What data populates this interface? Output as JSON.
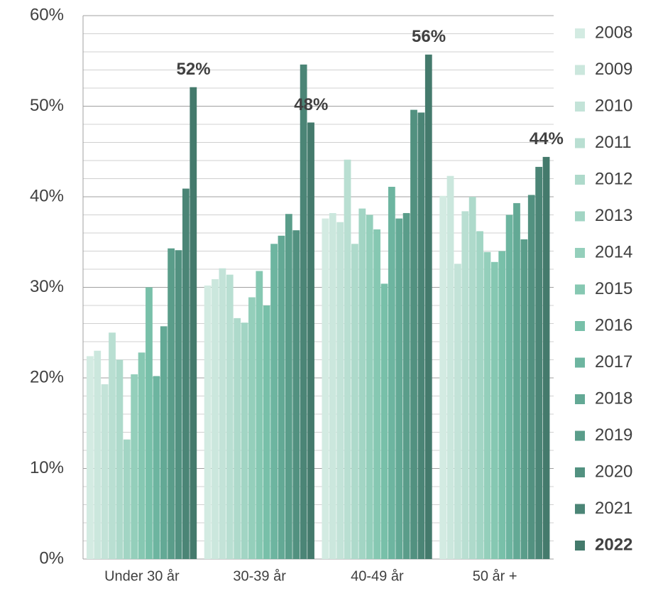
{
  "chart_data": {
    "type": "bar",
    "categories": [
      "Under 30 år",
      "30-39 år",
      "40-49 år",
      "50 år +"
    ],
    "series": [
      {
        "name": "2008",
        "color": "#d3ebe2",
        "values": [
          22.4,
          30.2,
          37.6,
          40.1
        ]
      },
      {
        "name": "2009",
        "color": "#cbe7dd",
        "values": [
          23.0,
          30.9,
          38.2,
          42.3
        ]
      },
      {
        "name": "2010",
        "color": "#c3e3d8",
        "values": [
          19.3,
          32.1,
          37.2,
          32.6
        ]
      },
      {
        "name": "2011",
        "color": "#b9dfd2",
        "values": [
          25.0,
          31.4,
          44.1,
          38.4
        ]
      },
      {
        "name": "2012",
        "color": "#aedacb",
        "values": [
          22.0,
          26.6,
          34.8,
          40.0
        ]
      },
      {
        "name": "2013",
        "color": "#a2d5c4",
        "values": [
          13.2,
          26.1,
          38.7,
          36.2
        ]
      },
      {
        "name": "2014",
        "color": "#94cfbb",
        "values": [
          20.4,
          28.9,
          38.0,
          33.9
        ]
      },
      {
        "name": "2015",
        "color": "#86c8b2",
        "values": [
          22.8,
          31.8,
          36.4,
          32.8
        ]
      },
      {
        "name": "2016",
        "color": "#78c0a9",
        "values": [
          30.0,
          28.0,
          30.4,
          34.0
        ]
      },
      {
        "name": "2017",
        "color": "#6db5a0",
        "values": [
          20.2,
          34.8,
          41.1,
          38.0
        ]
      },
      {
        "name": "2018",
        "color": "#63a995",
        "values": [
          25.7,
          35.7,
          37.6,
          39.3
        ]
      },
      {
        "name": "2019",
        "color": "#5a9d8a",
        "values": [
          34.3,
          38.1,
          38.2,
          35.3
        ]
      },
      {
        "name": "2020",
        "color": "#529180",
        "values": [
          34.1,
          36.3,
          49.6,
          40.2
        ]
      },
      {
        "name": "2021",
        "color": "#4b8576",
        "values": [
          40.9,
          54.6,
          49.3,
          43.3
        ]
      },
      {
        "name": "2022",
        "color": "#447a6c",
        "values": [
          52.1,
          48.2,
          55.7,
          44.4
        ],
        "value_labels": [
          "52%",
          "48%",
          "56%",
          "44%"
        ]
      }
    ],
    "ylim": [
      0,
      60
    ],
    "yticks": [
      {
        "value": 0,
        "label": "0%"
      },
      {
        "value": 10,
        "label": "10%"
      },
      {
        "value": 20,
        "label": "20%"
      },
      {
        "value": 30,
        "label": "30%"
      },
      {
        "value": 40,
        "label": "40%"
      },
      {
        "value": 50,
        "label": "50%"
      },
      {
        "value": 60,
        "label": "60%"
      }
    ],
    "minor_yticks": [
      2,
      4,
      6,
      8,
      12,
      14,
      16,
      18,
      22,
      24,
      26,
      28,
      32,
      34,
      36,
      38,
      42,
      44,
      46,
      48,
      52,
      54,
      56,
      58
    ],
    "grid": true,
    "legend": "right"
  }
}
